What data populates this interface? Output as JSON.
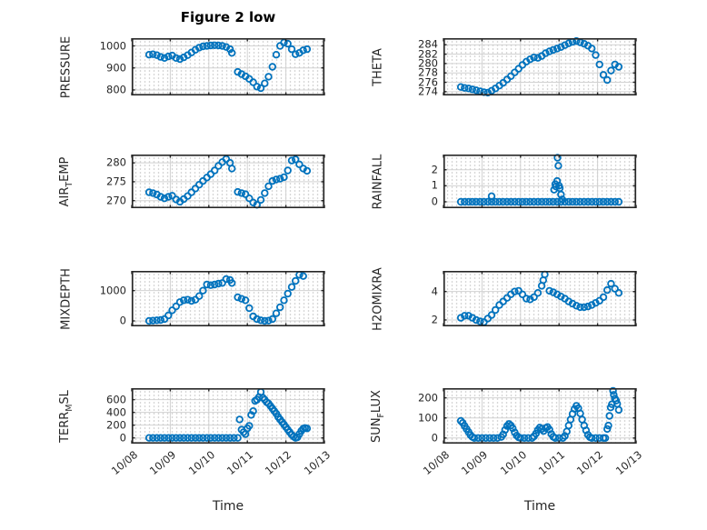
{
  "figure": {
    "title": "Figure 2 low",
    "time_axis_label": "Time",
    "x_tick_labels": [
      "10/08",
      "10/09",
      "10/10",
      "10/11",
      "10/12",
      "10/13"
    ],
    "xticks": [
      0,
      1,
      2,
      3,
      4,
      5
    ],
    "marker_color": "#0072BD",
    "axis_color": "#262626",
    "grid_color": "#d2d2d2",
    "background": "#ffffff"
  },
  "chart_data": [
    {
      "type": "scatter",
      "name": "PRESSURE",
      "ylabel": {
        "text": "PRESSURE",
        "pre": "PRESSURE",
        "sub": "",
        "post": ""
      },
      "xlim": [
        0,
        5
      ],
      "ylim": [
        775,
        1035
      ],
      "yticks": [
        800,
        900,
        1000
      ],
      "x": [
        0.45,
        0.55,
        0.65,
        0.75,
        0.85,
        0.95,
        1.05,
        1.15,
        1.25,
        1.35,
        1.45,
        1.55,
        1.65,
        1.75,
        1.85,
        1.95,
        2.05,
        2.15,
        2.25,
        2.35,
        2.45,
        2.55,
        2.6,
        2.75,
        2.85,
        2.95,
        3.05,
        3.15,
        3.25,
        3.35,
        3.45,
        3.55,
        3.65,
        3.75,
        3.85,
        3.95,
        4.05,
        4.15,
        4.25,
        4.35,
        4.45,
        4.55
      ],
      "y": [
        960,
        962,
        958,
        950,
        945,
        952,
        956,
        945,
        940,
        948,
        958,
        970,
        982,
        992,
        998,
        1000,
        1002,
        1003,
        1002,
        1000,
        995,
        985,
        968,
        882,
        872,
        862,
        850,
        835,
        815,
        808,
        830,
        860,
        905,
        960,
        1000,
        1015,
        1010,
        985,
        962,
        968,
        980,
        985
      ]
    },
    {
      "type": "scatter",
      "name": "THETA",
      "ylabel": {
        "text": "THETA",
        "pre": "THETA",
        "sub": "",
        "post": ""
      },
      "xlim": [
        0,
        5
      ],
      "ylim": [
        273.2,
        285.4
      ],
      "yticks": [
        274,
        276,
        278,
        280,
        282,
        284
      ],
      "x": [
        0.45,
        0.55,
        0.65,
        0.75,
        0.85,
        0.95,
        1.05,
        1.15,
        1.25,
        1.35,
        1.45,
        1.55,
        1.65,
        1.75,
        1.85,
        1.95,
        2.05,
        2.15,
        2.25,
        2.35,
        2.45,
        2.55,
        2.65,
        2.75,
        2.85,
        2.95,
        3.05,
        3.15,
        3.25,
        3.35,
        3.45,
        3.55,
        3.65,
        3.75,
        3.85,
        3.95,
        4.05,
        4.15,
        4.25,
        4.35,
        4.45,
        4.55
      ],
      "y": [
        275.0,
        274.8,
        274.7,
        274.5,
        274.3,
        274.1,
        273.9,
        273.8,
        274.2,
        274.7,
        275.3,
        275.9,
        276.6,
        277.3,
        278.1,
        278.9,
        279.7,
        280.4,
        280.9,
        281.3,
        281.2,
        281.6,
        282.2,
        282.6,
        282.9,
        283.2,
        283.5,
        283.9,
        284.3,
        284.6,
        284.8,
        284.5,
        284.2,
        283.8,
        283.2,
        281.8,
        279.8,
        277.6,
        276.5,
        278.5,
        279.8,
        279.3
      ]
    },
    {
      "type": "scatter",
      "name": "AIR_TEMP",
      "ylabel": {
        "text": "AIR_TEMP",
        "pre": "AIR",
        "sub": "T",
        "post": "EMP"
      },
      "xlim": [
        0,
        5
      ],
      "ylim": [
        268,
        282.2
      ],
      "yticks": [
        270,
        275,
        280
      ],
      "x": [
        0.45,
        0.55,
        0.65,
        0.75,
        0.85,
        0.95,
        1.05,
        1.15,
        1.25,
        1.35,
        1.45,
        1.55,
        1.65,
        1.75,
        1.85,
        1.95,
        2.05,
        2.15,
        2.25,
        2.35,
        2.45,
        2.55,
        2.6,
        2.75,
        2.85,
        2.95,
        3.05,
        3.15,
        3.25,
        3.35,
        3.45,
        3.55,
        3.65,
        3.75,
        3.85,
        3.95,
        4.05,
        4.15,
        4.25,
        4.35,
        4.45,
        4.55
      ],
      "y": [
        272.2,
        272.0,
        271.6,
        271.0,
        270.6,
        271.0,
        271.3,
        270.3,
        269.7,
        270.4,
        271.2,
        272.2,
        273.2,
        274.2,
        275.2,
        276.1,
        277.0,
        278.0,
        279.2,
        280.2,
        281.0,
        280.0,
        278.5,
        272.3,
        272.0,
        271.7,
        270.6,
        269.5,
        268.9,
        270.2,
        272.0,
        273.8,
        275.2,
        275.6,
        275.8,
        276.2,
        278.0,
        280.6,
        280.9,
        279.6,
        278.5,
        277.9
      ]
    },
    {
      "type": "scatter",
      "name": "RAINFALL",
      "ylabel": {
        "text": "RAINFALL",
        "pre": "RAINFALL",
        "sub": "",
        "post": ""
      },
      "xlim": [
        0,
        5
      ],
      "ylim": [
        -0.4,
        2.95
      ],
      "yticks": [
        0,
        1,
        2
      ],
      "x": [
        0.45,
        0.55,
        0.65,
        0.75,
        0.85,
        0.95,
        1.05,
        1.15,
        1.25,
        1.35,
        1.45,
        1.55,
        1.65,
        1.75,
        1.85,
        1.95,
        2.05,
        2.15,
        2.25,
        2.35,
        2.45,
        2.55,
        2.65,
        2.75,
        2.85,
        2.95,
        3.05,
        3.15,
        3.25,
        3.35,
        3.45,
        3.55,
        3.65,
        3.75,
        3.85,
        3.95,
        4.05,
        4.15,
        4.25,
        4.35,
        4.45,
        4.55,
        1.25,
        2.87,
        2.9,
        2.92,
        2.95,
        2.96,
        2.98,
        3.0,
        3.02,
        3.05,
        3.08
      ],
      "y": [
        0,
        0,
        0,
        0,
        0,
        0,
        0,
        0,
        0,
        0,
        0,
        0,
        0,
        0,
        0,
        0,
        0,
        0,
        0,
        0,
        0,
        0,
        0,
        0,
        0,
        0,
        0,
        0,
        0,
        0,
        0,
        0,
        0,
        0,
        0,
        0,
        0,
        0,
        0,
        0,
        0,
        0,
        0.35,
        0.75,
        1.1,
        0.95,
        1.3,
        2.75,
        2.25,
        1.0,
        0.85,
        0.45,
        0.15
      ]
    },
    {
      "type": "scatter",
      "name": "MIXDEPTH",
      "ylabel": {
        "text": "MIXDEPTH",
        "pre": "MIXDEPTH",
        "sub": "",
        "post": ""
      },
      "xlim": [
        0,
        5
      ],
      "ylim": [
        -180,
        1650
      ],
      "yticks": [
        0,
        1000
      ],
      "x": [
        0.45,
        0.55,
        0.65,
        0.75,
        0.85,
        0.95,
        1.05,
        1.15,
        1.25,
        1.35,
        1.45,
        1.55,
        1.65,
        1.75,
        1.85,
        1.95,
        2.05,
        2.15,
        2.25,
        2.35,
        2.45,
        2.55,
        2.6,
        2.75,
        2.85,
        2.95,
        3.05,
        3.15,
        3.25,
        3.35,
        3.45,
        3.55,
        3.65,
        3.75,
        3.85,
        3.95,
        4.05,
        4.15,
        4.25,
        4.35,
        4.45
      ],
      "y": [
        0,
        10,
        20,
        30,
        60,
        180,
        350,
        480,
        620,
        680,
        700,
        660,
        700,
        820,
        1000,
        1200,
        1180,
        1200,
        1230,
        1250,
        1380,
        1350,
        1250,
        780,
        730,
        680,
        420,
        150,
        60,
        20,
        0,
        10,
        60,
        250,
        450,
        680,
        900,
        1120,
        1320,
        1520,
        1480
      ]
    },
    {
      "type": "scatter",
      "name": "H2OMIXRA",
      "ylabel": {
        "text": "H2OMIXRA",
        "pre": "H2OMIXRA",
        "sub": "",
        "post": ""
      },
      "xlim": [
        0,
        5
      ],
      "ylim": [
        1.55,
        5.45
      ],
      "yticks": [
        2,
        4
      ],
      "x": [
        0.45,
        0.55,
        0.65,
        0.75,
        0.85,
        0.95,
        1.05,
        1.15,
        1.25,
        1.35,
        1.45,
        1.55,
        1.65,
        1.75,
        1.85,
        1.95,
        2.05,
        2.15,
        2.25,
        2.35,
        2.45,
        2.55,
        2.59,
        2.63,
        2.75,
        2.85,
        2.95,
        3.05,
        3.15,
        3.25,
        3.35,
        3.45,
        3.55,
        3.65,
        3.75,
        3.85,
        3.95,
        4.05,
        4.15,
        4.25,
        4.35,
        4.45,
        4.55
      ],
      "y": [
        2.15,
        2.3,
        2.3,
        2.15,
        2.0,
        1.9,
        1.85,
        2.1,
        2.35,
        2.7,
        3.05,
        3.3,
        3.55,
        3.8,
        4.0,
        4.05,
        3.8,
        3.5,
        3.45,
        3.6,
        3.9,
        4.4,
        4.8,
        5.2,
        4.05,
        3.95,
        3.8,
        3.65,
        3.5,
        3.3,
        3.15,
        3.0,
        2.9,
        2.9,
        2.95,
        3.05,
        3.2,
        3.35,
        3.6,
        4.1,
        4.55,
        4.2,
        3.9
      ]
    },
    {
      "type": "scatter",
      "name": "TERR_MSL",
      "ylabel": {
        "text": "TERR_MSL",
        "pre": "TERR",
        "sub": "M",
        "post": "SL"
      },
      "xlim": [
        0,
        5
      ],
      "ylim": [
        -90,
        780
      ],
      "yticks": [
        0,
        200,
        400,
        600
      ],
      "x": [
        0.45,
        0.55,
        0.65,
        0.75,
        0.85,
        0.95,
        1.05,
        1.15,
        1.25,
        1.35,
        1.45,
        1.55,
        1.65,
        1.75,
        1.85,
        1.95,
        2.05,
        2.15,
        2.25,
        2.35,
        2.45,
        2.55,
        2.65,
        2.75,
        2.8,
        2.85,
        2.9,
        2.95,
        3.0,
        3.05,
        3.1,
        3.15,
        3.2,
        3.25,
        3.3,
        3.35,
        3.4,
        3.45,
        3.5,
        3.55,
        3.6,
        3.65,
        3.7,
        3.75,
        3.8,
        3.85,
        3.9,
        3.95,
        4.0,
        4.05,
        4.1,
        4.15,
        4.2,
        4.25,
        4.3,
        4.35,
        4.4,
        4.45,
        4.5,
        4.55
      ],
      "y": [
        0,
        0,
        0,
        0,
        0,
        0,
        0,
        0,
        0,
        0,
        0,
        0,
        0,
        0,
        0,
        0,
        0,
        0,
        0,
        0,
        0,
        0,
        0,
        0,
        290,
        130,
        90,
        60,
        150,
        190,
        360,
        420,
        580,
        600,
        640,
        720,
        630,
        600,
        560,
        540,
        500,
        460,
        420,
        380,
        330,
        290,
        250,
        210,
        170,
        130,
        90,
        50,
        20,
        0,
        10,
        60,
        110,
        145,
        155,
        148
      ]
    },
    {
      "type": "scatter",
      "name": "SUN_FLUX",
      "ylabel": {
        "text": "SUN_FLUX",
        "pre": "SUN",
        "sub": "F",
        "post": "LUX"
      },
      "xlim": [
        0,
        5
      ],
      "ylim": [
        -28,
        248
      ],
      "yticks": [
        0,
        100,
        200
      ],
      "x": [
        0.45,
        0.5,
        0.55,
        0.6,
        0.65,
        0.7,
        0.75,
        0.8,
        0.9,
        1.0,
        1.1,
        1.2,
        1.3,
        1.4,
        1.5,
        1.55,
        1.6,
        1.65,
        1.7,
        1.75,
        1.8,
        1.85,
        1.9,
        1.95,
        2.0,
        2.1,
        2.2,
        2.3,
        2.35,
        2.4,
        2.45,
        2.5,
        2.55,
        2.6,
        2.65,
        2.7,
        2.75,
        2.8,
        2.85,
        2.9,
        3.0,
        3.1,
        3.15,
        3.2,
        3.25,
        3.3,
        3.35,
        3.4,
        3.45,
        3.5,
        3.55,
        3.6,
        3.65,
        3.7,
        3.75,
        3.8,
        3.85,
        3.95,
        4.05,
        4.15,
        4.2,
        4.25,
        4.28,
        4.31,
        4.34,
        4.37,
        4.4,
        4.42,
        4.45,
        4.48,
        4.51,
        4.55
      ],
      "y": [
        85,
        75,
        60,
        45,
        30,
        15,
        5,
        0,
        0,
        0,
        0,
        0,
        0,
        0,
        5,
        18,
        40,
        60,
        70,
        62,
        48,
        28,
        12,
        3,
        0,
        0,
        0,
        0,
        8,
        22,
        40,
        52,
        45,
        35,
        50,
        55,
        42,
        20,
        6,
        0,
        0,
        0,
        10,
        32,
        62,
        92,
        120,
        145,
        160,
        148,
        122,
        92,
        62,
        38,
        16,
        4,
        0,
        0,
        0,
        0,
        0,
        45,
        62,
        110,
        152,
        168,
        235,
        215,
        196,
        186,
        170,
        140
      ]
    }
  ]
}
